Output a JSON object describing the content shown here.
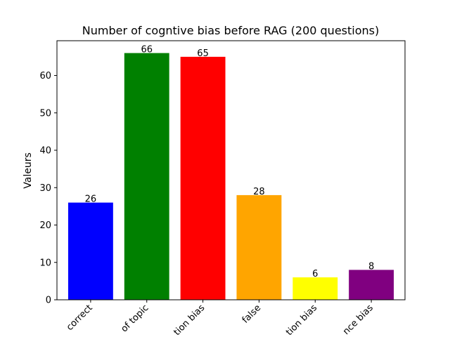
{
  "chart_data": {
    "type": "bar",
    "title": "Number of cogntive bias before RAG (200 questions)",
    "xlabel": "",
    "ylabel": "Valeurs",
    "categories": [
      "correct",
      "of topic",
      "tion bias",
      "false",
      "tion bias",
      "nce bias"
    ],
    "values": [
      26,
      66,
      65,
      28,
      6,
      8
    ],
    "colors": [
      "#0000ff",
      "#008000",
      "#ff0000",
      "#ffa500",
      "#ffff00",
      "#800080"
    ],
    "ylim": [
      0,
      69.3
    ],
    "yticks": [
      0,
      10,
      20,
      30,
      40,
      50,
      60
    ],
    "grid": false,
    "legend": "none"
  }
}
